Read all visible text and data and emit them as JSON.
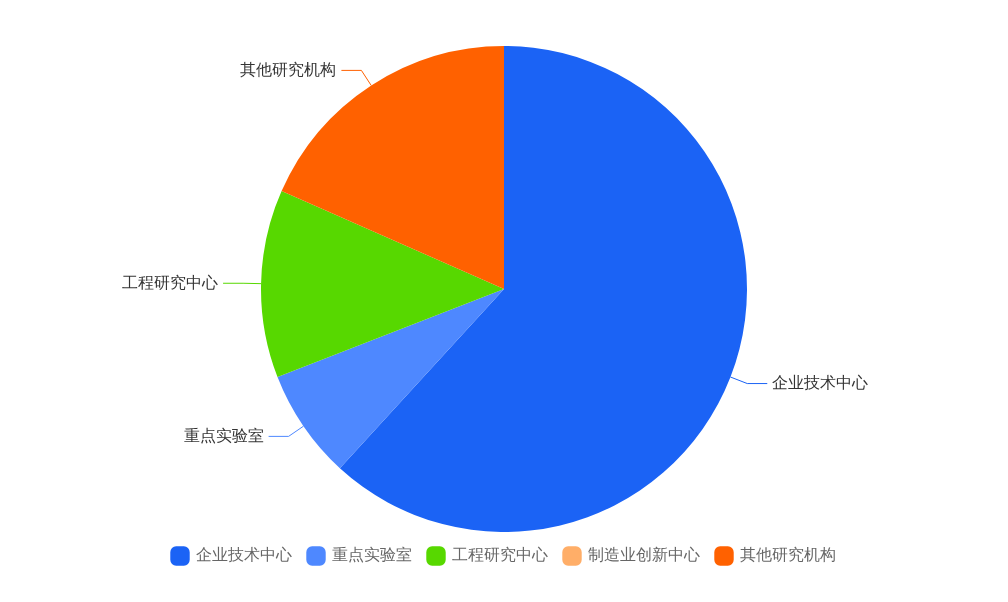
{
  "chart_data": {
    "type": "pie",
    "categories": [
      "企业技术中心",
      "重点实验室",
      "工程研究中心",
      "制造业创新中心",
      "其他研究机构"
    ],
    "values": [
      61.8,
      7.3,
      12.5,
      0,
      18.4
    ],
    "colors": [
      "#1b63f5",
      "#4e88ff",
      "#57d800",
      "#ffae68",
      "#ff6100"
    ],
    "legend": "bottom"
  }
}
